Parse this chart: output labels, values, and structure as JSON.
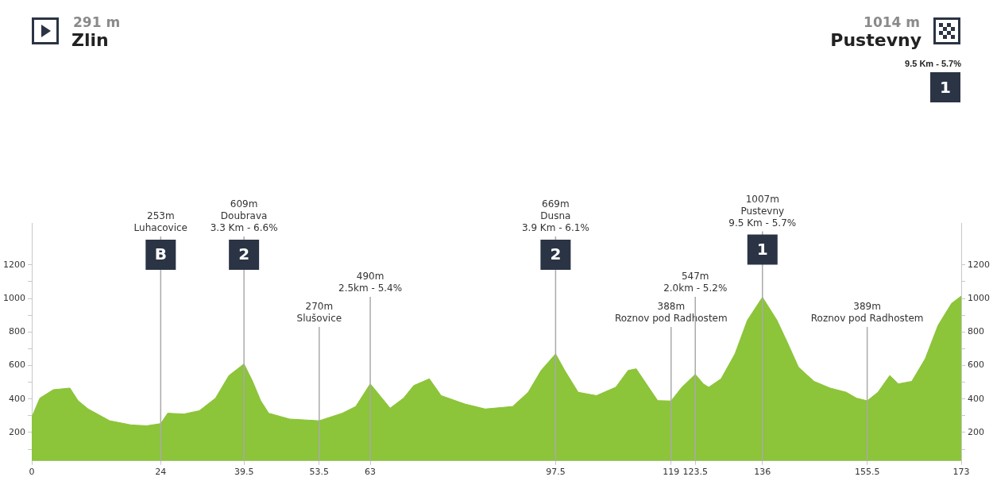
{
  "chart_data": {
    "type": "area",
    "x": [
      0,
      1.5,
      4,
      7.1,
      8.6,
      10.5,
      14.5,
      18.5,
      21.4,
      24,
      25.3,
      28.3,
      31.2,
      34.2,
      36.7,
      39.5,
      41.1,
      42.6,
      44.1,
      48,
      53.5,
      57.8,
      60.3,
      62.3,
      63,
      64.8,
      66.7,
      69.2,
      71.1,
      74,
      76.2,
      80.6,
      84.4,
      89.5,
      92.4,
      94.8,
      97.5,
      99.2,
      101.7,
      105.1,
      108.7,
      111,
      112.5,
      114.6,
      116.5,
      119,
      121,
      123.5,
      125,
      126,
      128.3,
      130.9,
      133.2,
      136,
      138.7,
      140.6,
      142.7,
      145.6,
      148.6,
      151.6,
      153.5,
      155.5,
      157.5,
      159.7,
      161.3,
      163.8,
      166.3,
      168.7,
      171.2,
      173
    ],
    "series": [
      {
        "color": "#8cc43a",
        "values": [
          291,
          405,
          455,
          465,
          390,
          340,
          270,
          245,
          240,
          253,
          315,
          310,
          330,
          405,
          540,
          609,
          505,
          390,
          315,
          280,
          270,
          315,
          355,
          455,
          490,
          420,
          345,
          405,
          480,
          520,
          420,
          370,
          340,
          355,
          440,
          570,
          669,
          570,
          440,
          420,
          470,
          570,
          580,
          480,
          390,
          388,
          470,
          547,
          490,
          470,
          520,
          670,
          870,
          1007,
          870,
          740,
          590,
          505,
          465,
          440,
          405,
          389,
          440,
          540,
          490,
          505,
          640,
          840,
          970,
          1014
        ]
      }
    ],
    "xlim": [
      0,
      173
    ],
    "xticks": [
      0,
      24,
      39.5,
      53.5,
      63,
      97.5,
      119,
      123.5,
      136,
      155.5,
      173
    ],
    "ylim": [
      30,
      1450
    ],
    "yticks": [
      {
        "value": 100,
        "label": null
      },
      200,
      {
        "value": 300,
        "label": null
      },
      400,
      {
        "value": 500,
        "label": null
      },
      600,
      {
        "value": 700,
        "label": null
      },
      800,
      {
        "value": 900,
        "label": null
      },
      1000,
      {
        "value": 1100,
        "label": null
      },
      1200
    ],
    "y2lim": [
      30,
      1450
    ],
    "y2ticks": [
      {
        "value": 100,
        "label": null
      },
      200,
      {
        "value": 300,
        "label": null
      },
      400,
      {
        "value": 500,
        "label": null
      },
      600,
      {
        "value": 700,
        "label": null
      },
      800,
      {
        "value": 900,
        "label": null
      },
      1000,
      {
        "value": 1100,
        "label": null
      },
      1200
    ],
    "ref_lines": [
      {
        "axis": "x",
        "value": 24,
        "label": "253m\nLuhacovice",
        "color": "#aaaaaa"
      },
      {
        "axis": "x",
        "value": 39.5,
        "label": "609m\nDoubrava\n3.3 Km - 6.6%",
        "color": "#aaaaaa"
      },
      {
        "axis": "x",
        "value": 53.5,
        "label": "270m\nSlušovice",
        "color": "#aaaaaa"
      },
      {
        "axis": "x",
        "value": 63,
        "label": "490m\n2.5km - 5.4%",
        "color": "#aaaaaa"
      },
      {
        "axis": "x",
        "value": 97.5,
        "label": "669m\nDusna\n3.9 Km - 6.1%",
        "color": "#aaaaaa"
      },
      {
        "axis": "x",
        "value": 119,
        "label": "388m\nRoznov pod Radhostem",
        "color": "#aaaaaa"
      },
      {
        "axis": "x",
        "value": 123.5,
        "label": "547m\n2.0km - 5.2%",
        "color": "#aaaaaa"
      },
      {
        "axis": "x",
        "value": 136,
        "label": "1007m\nPustevny\n9.5 Km - 5.7%",
        "color": "#aaaaaa"
      },
      {
        "axis": "x",
        "value": 155.5,
        "label": "389m\nRoznov pod Radhostem",
        "color": "#aaaaaa"
      }
    ],
    "annotations": [
      "291 m",
      "Zlin",
      "1014 m",
      "Pustevny",
      "9.5 Km - 5.7%",
      "1",
      {
        "text": "B",
        "x": 24
      },
      {
        "text": "2",
        "x": 39.5
      },
      {
        "text": "2",
        "x": 97.5
      },
      {
        "text": "1",
        "x": 136
      }
    ]
  }
}
